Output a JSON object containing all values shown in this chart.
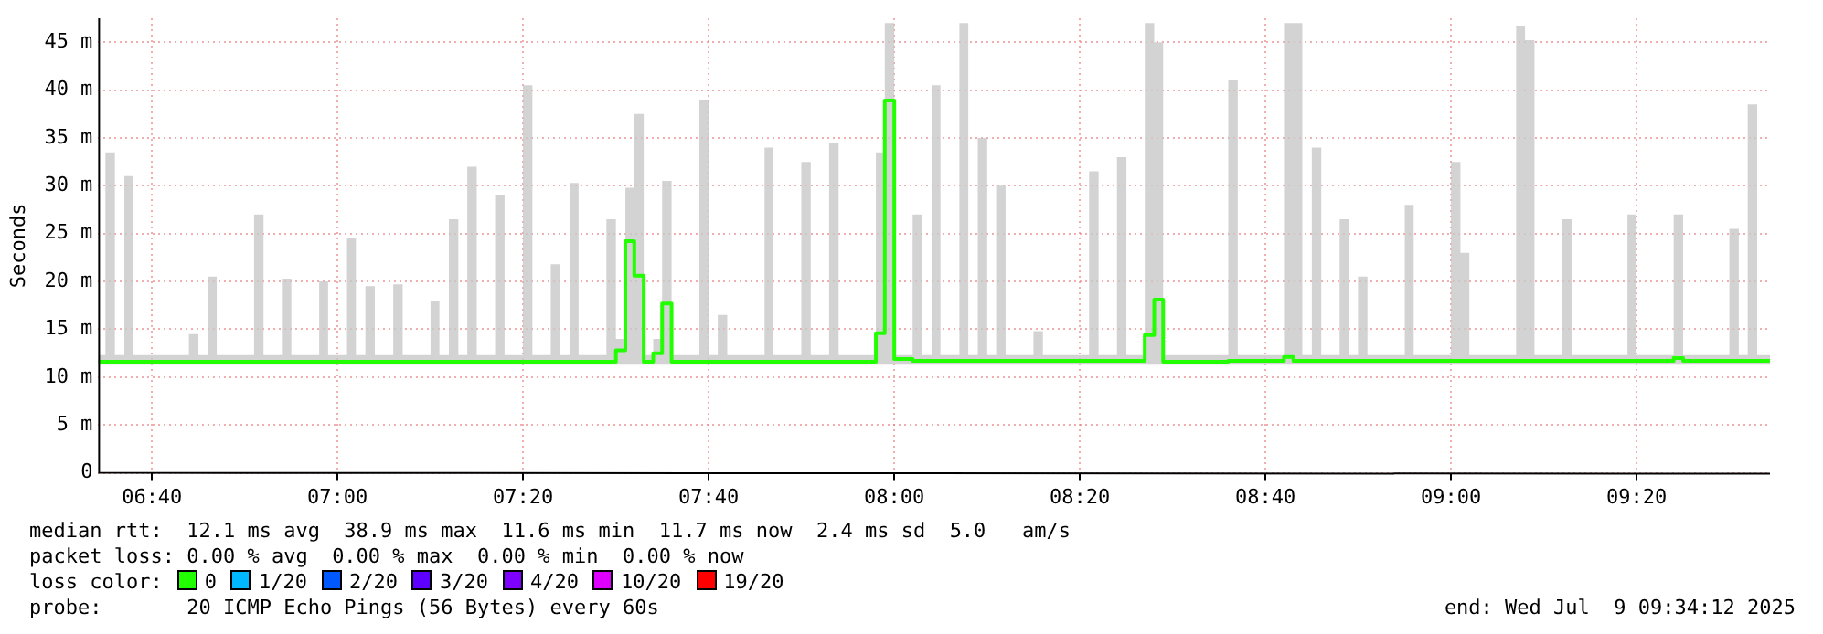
{
  "chart_data": {
    "type": "step",
    "ylabel": "Seconds",
    "legend_title": "loss color:",
    "legend": "bottom",
    "grid": true,
    "annotations": [
      "median rtt:  12.1 ms avg  38.9 ms max  11.6 ms min  11.7 ms now  2.4 ms sd  5.0   am/s",
      "packet loss: 0.00 % avg  0.00 % max  0.00 % min  0.00 % now",
      "probe:       20 ICMP Echo Pings (56 Bytes) every 60s",
      "end: Wed Jul  9 09:34:12 2025"
    ],
    "xlim": [
      6.57,
      9.573
    ],
    "xticks": [
      {
        "value": 6.6667,
        "label": "06:40"
      },
      {
        "value": 7,
        "label": "07:00"
      },
      {
        "value": 7.3333,
        "label": "07:20"
      },
      {
        "value": 7.6667,
        "label": "07:40"
      },
      {
        "value": 8,
        "label": "08:00"
      },
      {
        "value": 8.3333,
        "label": "08:20"
      },
      {
        "value": 8.6667,
        "label": "08:40"
      },
      {
        "value": 9,
        "label": "09:00"
      },
      {
        "value": 9.3333,
        "label": "09:20"
      }
    ],
    "ylim": [
      0,
      47.5
    ],
    "yticks": [
      0,
      {
        "value": 5,
        "label": "5 m"
      },
      {
        "value": 10,
        "label": "10 m"
      },
      {
        "value": 15,
        "label": "15 m"
      },
      {
        "value": 20,
        "label": "20 m"
      },
      {
        "value": 25,
        "label": "25 m"
      },
      {
        "value": 30,
        "label": "30 m"
      },
      {
        "value": 35,
        "label": "35 m"
      },
      {
        "value": 40,
        "label": "40 m"
      },
      {
        "value": 45,
        "label": "45 m"
      }
    ],
    "series": [
      {
        "name": "0",
        "color": "#22ff00",
        "x": [
          6.57,
          6.583,
          6.6,
          6.617,
          6.633,
          6.733,
          6.75,
          6.767,
          6.783,
          6.85,
          6.867,
          6.9,
          6.917,
          6.967,
          6.983,
          7.017,
          7.033,
          7.05,
          7.067,
          7.1,
          7.117,
          7.167,
          7.183,
          7.2,
          7.217,
          7.233,
          7.25,
          7.283,
          7.3,
          7.333,
          7.35,
          7.383,
          7.4,
          7.417,
          7.433,
          7.483,
          7.5,
          7.517,
          7.533,
          7.55,
          7.567,
          7.583,
          7.6,
          7.65,
          7.667,
          7.683,
          7.7,
          7.767,
          7.783,
          7.833,
          7.85,
          7.883,
          7.9,
          7.967,
          7.983,
          8.0,
          8.033,
          8.05,
          8.067,
          8.083,
          8.117,
          8.133,
          8.15,
          8.167,
          8.183,
          8.2,
          8.25,
          8.267,
          8.35,
          8.367,
          8.4,
          8.417,
          8.45,
          8.467,
          8.483,
          8.6,
          8.617,
          8.7,
          8.717,
          8.733,
          8.75,
          8.767,
          8.8,
          8.817,
          8.833,
          8.85,
          8.917,
          8.933,
          9.0,
          9.017,
          9.033,
          9.117,
          9.133,
          9.15,
          9.2,
          9.217,
          9.317,
          9.333,
          9.4,
          9.417,
          9.5,
          9.517,
          9.533,
          9.55,
          9.573
        ],
        "values": [
          11.6,
          11.6,
          11.6,
          11.6,
          11.6,
          11.6,
          11.6,
          11.6,
          11.6,
          11.6,
          11.6,
          11.6,
          11.6,
          11.6,
          11.6,
          11.6,
          11.6,
          11.6,
          11.6,
          11.6,
          11.6,
          11.6,
          11.6,
          11.6,
          11.6,
          11.6,
          11.6,
          11.6,
          11.6,
          11.6,
          11.6,
          11.6,
          11.6,
          11.6,
          11.6,
          11.6,
          12.8,
          24.2,
          20.6,
          11.6,
          12.5,
          17.7,
          11.6,
          11.6,
          11.6,
          11.6,
          11.6,
          11.6,
          11.6,
          11.6,
          11.6,
          11.6,
          11.6,
          14.6,
          38.9,
          11.9,
          11.7,
          11.7,
          11.7,
          11.7,
          11.7,
          11.7,
          11.7,
          11.7,
          11.7,
          11.7,
          11.7,
          11.7,
          11.7,
          11.7,
          11.7,
          11.7,
          14.4,
          18.1,
          11.6,
          11.7,
          11.7,
          12.1,
          11.7,
          11.7,
          11.7,
          11.7,
          11.7,
          11.7,
          11.7,
          11.7,
          11.7,
          11.7,
          11.7,
          11.7,
          11.7,
          11.7,
          11.7,
          11.7,
          11.7,
          11.7,
          11.7,
          11.7,
          12.0,
          11.7,
          11.7,
          11.7,
          11.7,
          11.7,
          11.7
        ],
        "lower": [
          11.4,
          11.4,
          11.4,
          11.4,
          11.4,
          11.4,
          11.4,
          11.4,
          11.4,
          11.4,
          11.4,
          11.4,
          11.4,
          11.4,
          11.4,
          11.4,
          11.4,
          11.4,
          11.4,
          11.4,
          11.4,
          11.4,
          11.4,
          11.4,
          11.4,
          11.4,
          11.4,
          11.4,
          11.4,
          11.4,
          11.4,
          11.4,
          11.4,
          11.4,
          11.4,
          11.4,
          11.4,
          11.4,
          11.4,
          11.4,
          11.4,
          11.4,
          11.4,
          11.4,
          11.4,
          11.4,
          11.4,
          11.4,
          11.4,
          11.4,
          11.4,
          11.4,
          11.4,
          11.4,
          11.4,
          11.4,
          11.4,
          11.4,
          11.4,
          11.4,
          11.4,
          11.4,
          11.4,
          11.4,
          11.4,
          11.4,
          11.4,
          11.4,
          11.4,
          11.4,
          11.4,
          11.4,
          11.4,
          11.4,
          11.4,
          11.4,
          11.4,
          11.4,
          11.4,
          11.4,
          11.4,
          11.4,
          11.4,
          11.4,
          11.4,
          11.4,
          11.4,
          11.4,
          11.4,
          11.4,
          11.4,
          11.4,
          11.4,
          11.4,
          11.4,
          11.4,
          11.4,
          11.4,
          11.4,
          11.4,
          11.4,
          11.4,
          11.4,
          11.4,
          11.4
        ],
        "upper": [
          12.3,
          33.5,
          12.3,
          31,
          12.3,
          14.5,
          12.3,
          20.5,
          12.3,
          27,
          12.3,
          20.3,
          12.3,
          20,
          12.3,
          24.5,
          12.3,
          19.5,
          12.3,
          19.7,
          12.3,
          18,
          12.3,
          26.5,
          12.3,
          32,
          12.3,
          29,
          12.3,
          40.5,
          12.3,
          21.8,
          12.3,
          30.3,
          12.3,
          26.5,
          14,
          29.8,
          37.5,
          12.3,
          14,
          30.5,
          12.3,
          39,
          12.3,
          16.5,
          12.3,
          34,
          12.3,
          32.5,
          12.3,
          34.5,
          12.3,
          33.5,
          47,
          12.3,
          27,
          12.3,
          40.5,
          12.3,
          47,
          12.3,
          35,
          12.3,
          30,
          12.3,
          14.8,
          12.3,
          31.5,
          12.3,
          33,
          12.3,
          47,
          45,
          12.3,
          41,
          12.3,
          47,
          47,
          12.3,
          34,
          12.3,
          26.5,
          12.3,
          20.5,
          12.3,
          28,
          12.3,
          32.5,
          23,
          12.3,
          46.7,
          45.2,
          12.3,
          26.5,
          12.3,
          27,
          12.3,
          27,
          12.3,
          25.5,
          12.3,
          38.5,
          12.3,
          12.3
        ]
      },
      {
        "name": "1/20",
        "color": "#00b8ff"
      },
      {
        "name": "2/20",
        "color": "#0059ff"
      },
      {
        "name": "3/20",
        "color": "#5e00ff"
      },
      {
        "name": "4/20",
        "color": "#7e00ff"
      },
      {
        "name": "10/20",
        "color": "#dd00ff"
      },
      {
        "name": "19/20",
        "color": "#ff0000"
      }
    ]
  }
}
